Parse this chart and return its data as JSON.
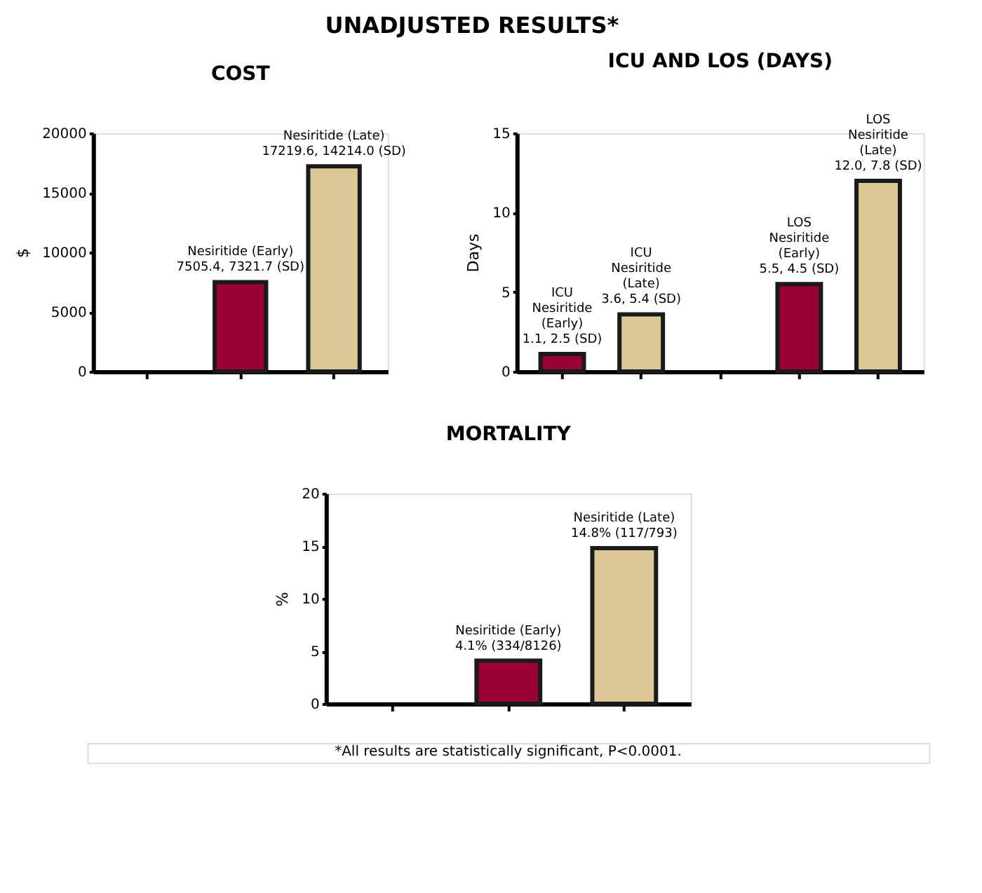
{
  "chart_data": [
    {
      "type": "other",
      "title": "UNADJUSTED RESULTS*",
      "annotations": [
        "*All results are statistically significant, P<0.0001."
      ]
    },
    {
      "type": "bar",
      "title": "COST",
      "ylabel": "$",
      "categories": [
        null,
        null,
        null
      ],
      "values": [
        null,
        7505.4,
        17219.6
      ],
      "colors": [
        "#990033",
        "#990033",
        "#dcc896"
      ],
      "ylim": [
        0,
        20000
      ],
      "yticks": [
        0,
        5000,
        10000,
        15000,
        20000
      ],
      "grid": false,
      "value_labels": [
        null,
        "Nesiritide (Early)\n7505.4, 7321.7 (SD)",
        "Nesiritide (Late)\n17219.6, 14214.0 (SD)"
      ]
    },
    {
      "type": "bar",
      "title": "ICU AND LOS (DAYS)",
      "ylabel": "Days",
      "categories": [
        null,
        null,
        null,
        null,
        null
      ],
      "values": [
        1.1,
        3.6,
        null,
        5.5,
        12.0
      ],
      "colors": [
        "#990033",
        "#dcc896",
        "#990033",
        "#990033",
        "#dcc896"
      ],
      "ylim": [
        0,
        15
      ],
      "yticks": [
        0,
        5,
        10,
        15
      ],
      "grid": false,
      "value_labels": [
        "ICU\nNesiritide\n(Early)\n1.1, 2.5 (SD)",
        "ICU\nNesiritide\n(Late)\n3.6, 5.4 (SD)",
        null,
        "LOS\nNesiritide\n(Early)\n5.5, 4.5 (SD)",
        "LOS\nNesiritide\n(Late)\n12.0, 7.8 (SD)"
      ]
    },
    {
      "type": "bar",
      "title": "MORTALITY",
      "ylabel": "%",
      "categories": [
        null,
        null,
        null
      ],
      "values": [
        null,
        4.1,
        14.8
      ],
      "colors": [
        "#990033",
        "#990033",
        "#dcc896"
      ],
      "ylim": [
        0,
        20
      ],
      "yticks": [
        0,
        5,
        10,
        15,
        20
      ],
      "grid": false,
      "value_labels": [
        null,
        "Nesiritide (Early)\n4.1% (334/8126)",
        "Nesiritide (Late)\n14.8% (117/793)"
      ]
    }
  ]
}
